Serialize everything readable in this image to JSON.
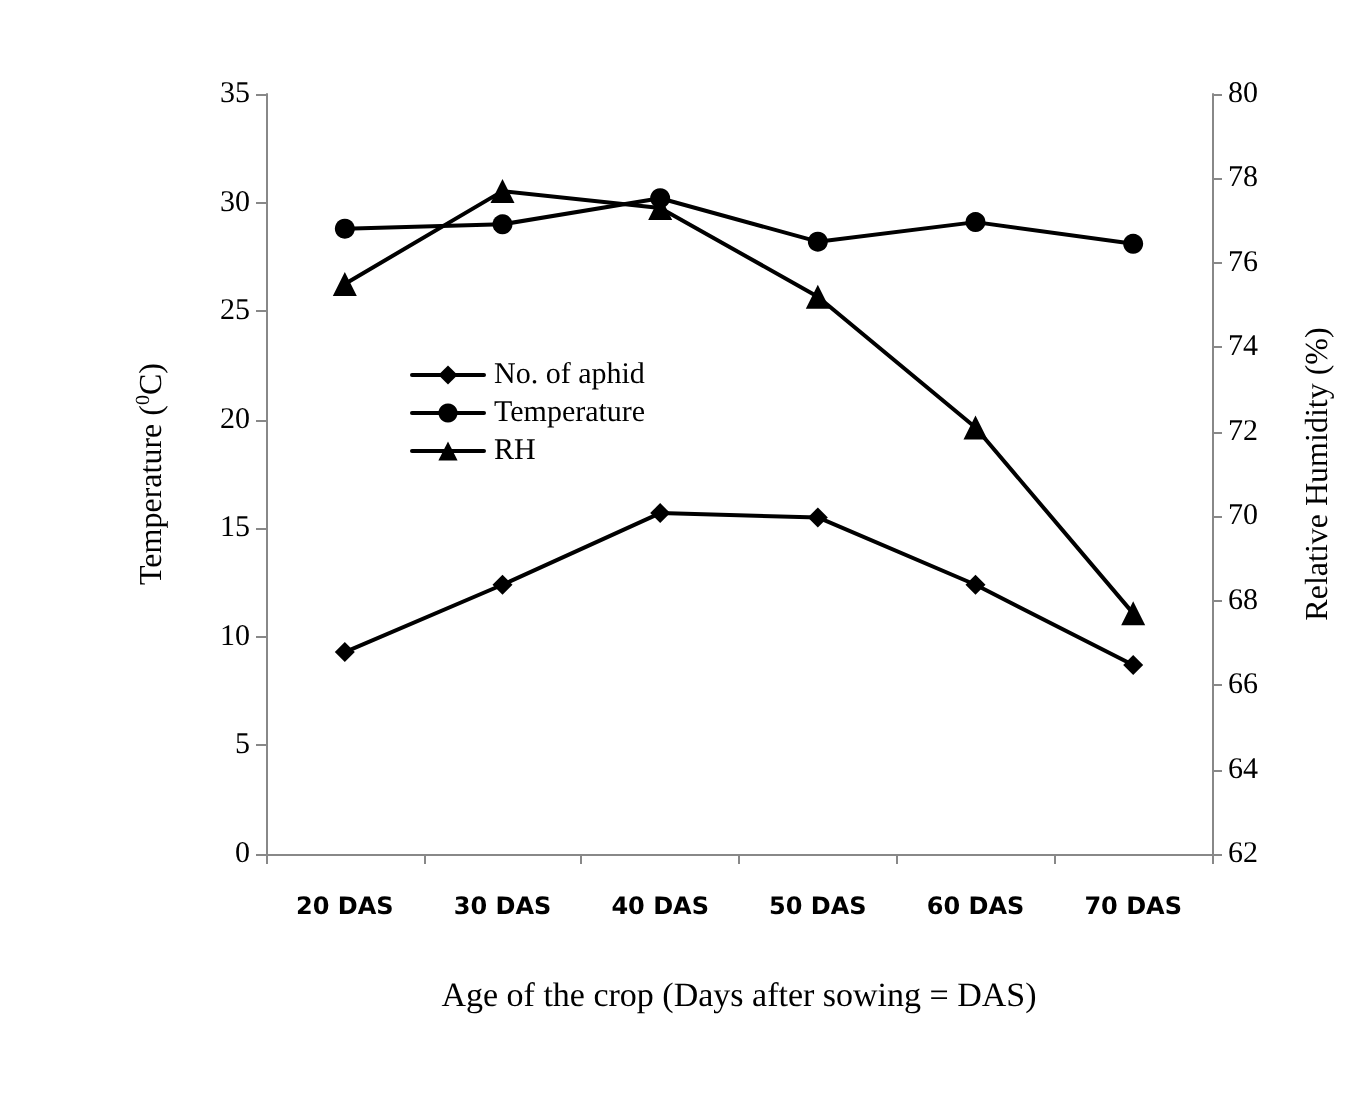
{
  "chart_data": {
    "type": "line",
    "xlabel": "Age of the crop (Days after sowing = DAS)",
    "ylabel": "Temperature ($^{0}$C)",
    "y2label": "Relative Humidity (%)",
    "categories": [
      "20 DAS",
      "30 DAS",
      "40 DAS",
      "50 DAS",
      "60 DAS",
      "70 DAS"
    ],
    "series": [
      {
        "name": "No. of aphid",
        "color": "#000000",
        "marker": "diamond",
        "values": [
          9.3,
          12.4,
          15.7,
          15.5,
          12.4,
          8.7
        ]
      },
      {
        "name": "Temperature",
        "color": "#000000",
        "marker": "circle",
        "values": [
          28.8,
          29.0,
          30.2,
          28.2,
          29.1,
          28.1
        ]
      },
      {
        "name": "RH",
        "color": "#000000",
        "marker": "triangle",
        "axis": "y2",
        "values": [
          75.5,
          77.7,
          77.3,
          75.2,
          72.1,
          67.7
        ]
      }
    ],
    "ylim": [
      0,
      35
    ],
    "yticks": [
      0,
      5,
      10,
      15,
      20,
      25,
      30,
      35
    ],
    "y2lim": [
      62,
      80
    ],
    "y2ticks": [
      62,
      64,
      66,
      68,
      70,
      72,
      74,
      76,
      78,
      80
    ],
    "grid": false,
    "legend": "top left",
    "line_style": "solid"
  }
}
